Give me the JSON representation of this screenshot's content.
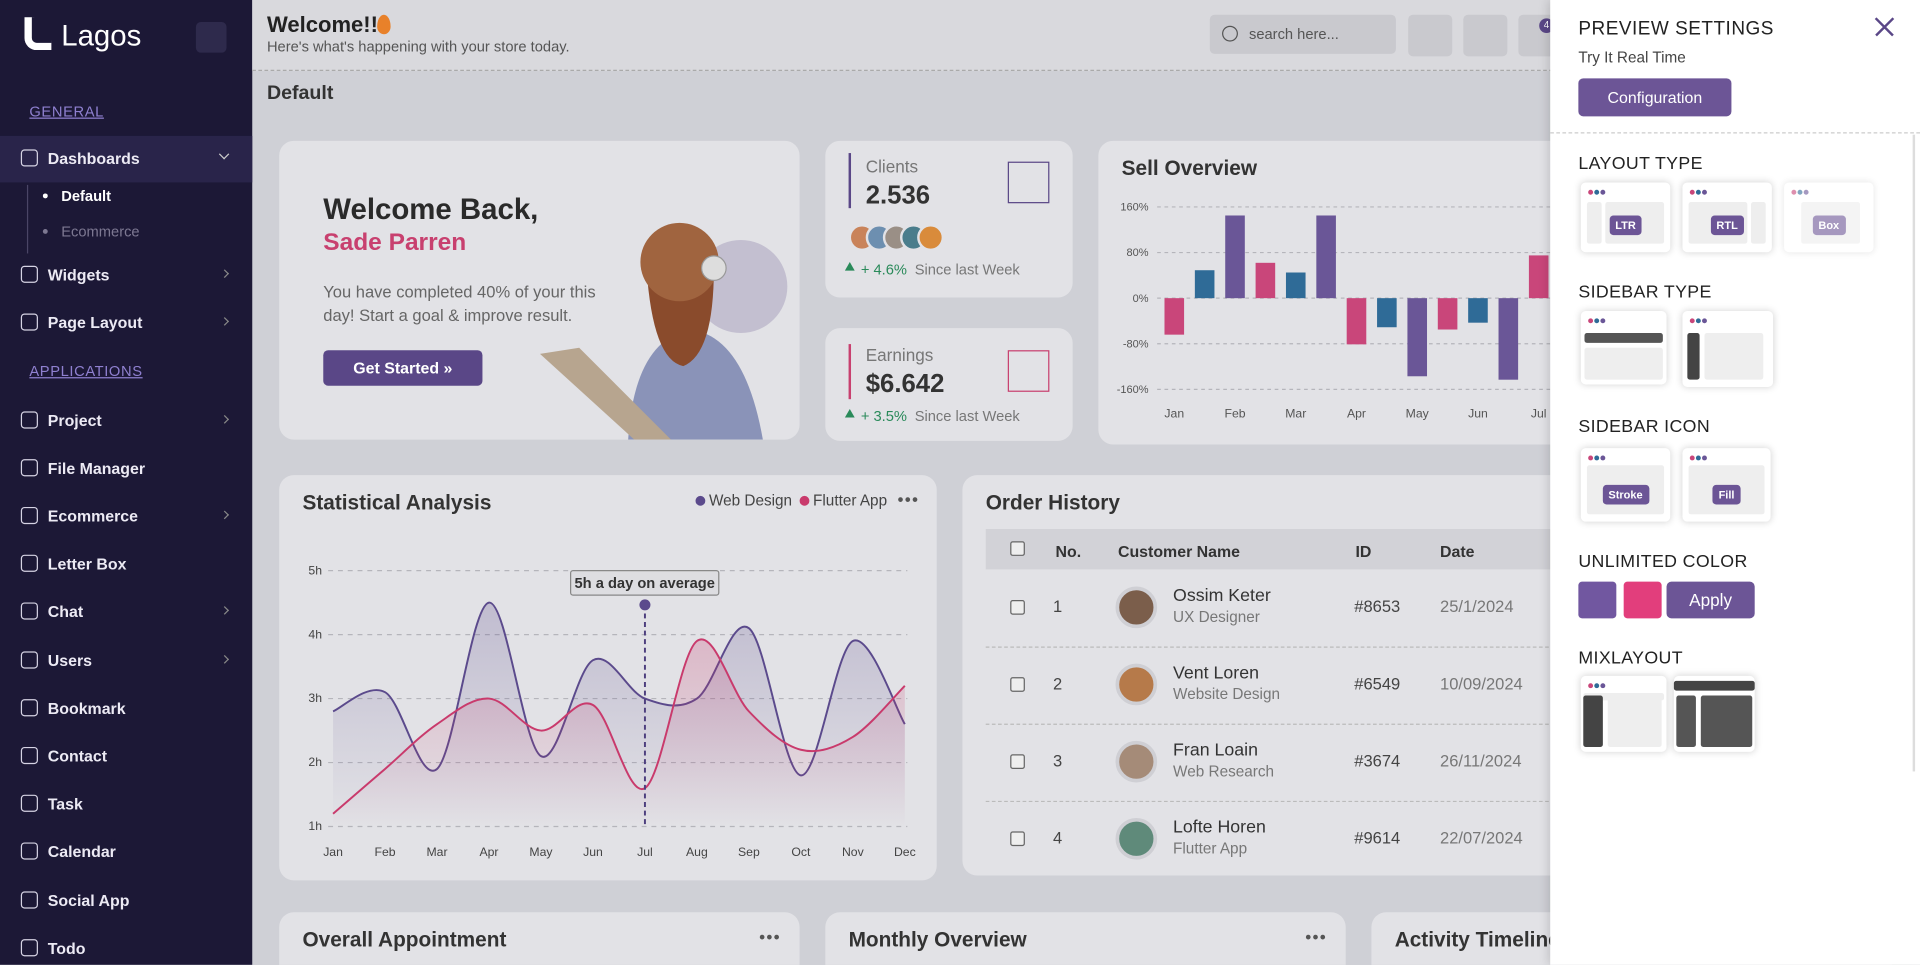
{
  "header": {
    "title": "Welcome!!",
    "subtitle": "Here's what's happening with your store today.",
    "search_placeholder": "search here...",
    "notification_count": "4",
    "breadcrumb": "Default"
  },
  "sidebar": {
    "brand": "Lagos",
    "groups": [
      {
        "title": "GENERAL",
        "items": [
          {
            "label": "Dashboards",
            "sub": [
              "Default",
              "Ecommerce"
            ]
          },
          {
            "label": "Widgets"
          },
          {
            "label": "Page Layout"
          }
        ]
      },
      {
        "title": "APPLICATIONS",
        "items": [
          {
            "label": "Project"
          },
          {
            "label": "File Manager"
          },
          {
            "label": "Ecommerce"
          },
          {
            "label": "Letter Box"
          },
          {
            "label": "Chat"
          },
          {
            "label": "Users"
          },
          {
            "label": "Bookmark"
          },
          {
            "label": "Contact"
          },
          {
            "label": "Task"
          },
          {
            "label": "Calendar"
          },
          {
            "label": "Social App"
          },
          {
            "label": "Todo"
          }
        ]
      }
    ]
  },
  "welcome_card": {
    "title": "Welcome Back,",
    "name": "Sade Parren",
    "text": "You have completed 40% of your this day! Start a goal & improve result.",
    "button": "Get Started »"
  },
  "stat_cards": [
    {
      "label": "Clients",
      "value": "2.536",
      "change": "+ 4.6%",
      "period": "Since last Week"
    },
    {
      "label": "Earnings",
      "value": "$6.642",
      "change": "+ 3.5%",
      "period": "Since last Week"
    }
  ],
  "chart_data": [
    {
      "type": "bar",
      "title": "Sell Overview",
      "categories": [
        "Jan",
        null,
        "Feb",
        null,
        "Mar",
        null,
        "Apr",
        null,
        "May",
        null,
        "Jun",
        null,
        "Jul"
      ],
      "values": [
        -64,
        49,
        145,
        62,
        45,
        145,
        -81,
        -51,
        -137,
        -55,
        -43,
        -143,
        75
      ],
      "colors": [
        "#c9467a",
        "#2f6b97",
        "#6a5697",
        "#c9467a",
        "#2f6b97",
        "#6a5697",
        "#c9467a",
        "#2f6b97",
        "#6a5697",
        "#c9467a",
        "#2f6b97",
        "#6a5697",
        "#c9467a"
      ],
      "ylim": [
        -160,
        160
      ],
      "yticks": [
        {
          "value": -160,
          "label": "-160%"
        },
        {
          "value": -80,
          "label": "-80%"
        },
        {
          "value": 0,
          "label": "0%"
        },
        {
          "value": 80,
          "label": "80%"
        },
        {
          "value": 160,
          "label": "160%"
        }
      ],
      "grid": true
    },
    {
      "type": "line",
      "title": "Statistical Analysis",
      "categories": [
        "Jan",
        "Feb",
        "Mar",
        "Apr",
        "May",
        "Jun",
        "Jul",
        "Aug",
        "Sep",
        "Oct",
        "Nov",
        "Dec"
      ],
      "series": [
        {
          "name": "Web Design",
          "color": "#5b4a8c",
          "values": [
            2.8,
            3.1,
            1.9,
            4.5,
            2.1,
            3.6,
            3.0,
            3.0,
            4.1,
            1.8,
            3.9,
            2.6
          ]
        },
        {
          "name": "Flutter App",
          "color": "#c93a6c",
          "values": [
            1.2,
            1.9,
            2.6,
            3.0,
            2.5,
            2.9,
            1.6,
            3.9,
            2.8,
            2.2,
            2.4,
            3.2
          ]
        }
      ],
      "ylim": [
        1,
        5
      ],
      "yticks": [
        {
          "value": 1,
          "label": "1h"
        },
        {
          "value": 2,
          "label": "2h"
        },
        {
          "value": 3,
          "label": "3h"
        },
        {
          "value": 4,
          "label": "4h"
        },
        {
          "value": 5,
          "label": "5h"
        }
      ],
      "annotation": "5h a day on average",
      "grid": true
    }
  ],
  "order_history": {
    "title": "Order History",
    "columns": [
      "No.",
      "Customer Name",
      "ID",
      "Date"
    ],
    "rows": [
      {
        "no": 1,
        "name": "Ossim Keter",
        "role": "UX Designer",
        "id": "#8653",
        "date": "25/1/2024"
      },
      {
        "no": 2,
        "name": "Vent Loren",
        "role": "Website Design",
        "id": "#6549",
        "date": "10/09/2024"
      },
      {
        "no": 3,
        "name": "Fran Loain",
        "role": "Web Research",
        "id": "#3674",
        "date": "26/11/2024"
      },
      {
        "no": 4,
        "name": "Lofte Horen",
        "role": "Flutter App",
        "id": "#9614",
        "date": "22/07/2024"
      }
    ]
  },
  "bottom_cards": [
    "Overall Appointment",
    "Monthly Overview",
    "Activity Timeline"
  ],
  "settings": {
    "title": "PREVIEW SETTINGS",
    "subtitle": "Try It Real Time",
    "button": "Configuration",
    "layout_type": {
      "title": "LAYOUT TYPE",
      "options": [
        "LTR",
        "RTL",
        "Box"
      ]
    },
    "sidebar_type": {
      "title": "SIDEBAR TYPE"
    },
    "sidebar_icon": {
      "title": "SIDEBAR ICON",
      "options": [
        "Stroke",
        "Fill"
      ]
    },
    "unlimited_color": {
      "title": "UNLIMITED COLOR",
      "button": "Apply"
    },
    "mix_layout": {
      "title": "MIXLAYOUT"
    }
  }
}
